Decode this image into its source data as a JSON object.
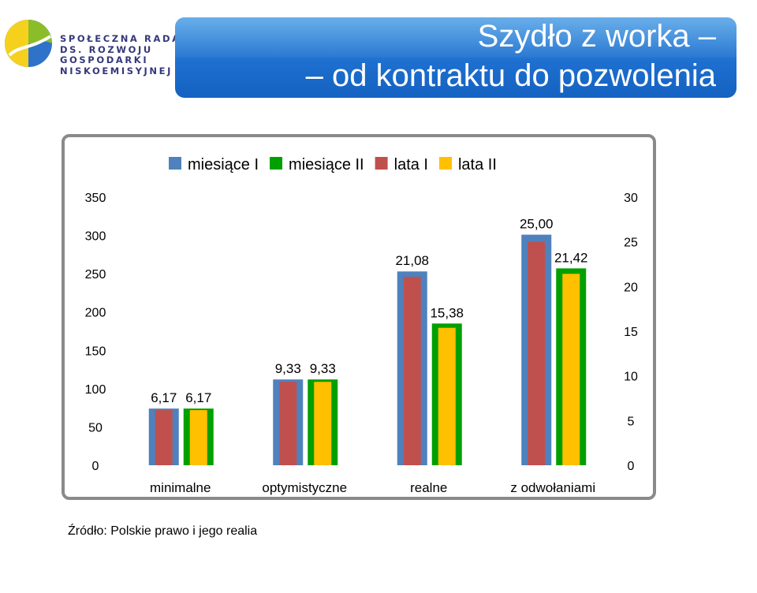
{
  "logo": {
    "lines": [
      "SPOŁECZNA RADA",
      "DS. ROZWOJU",
      "GOSPODARKI",
      "NISKOEMISYJNEJ"
    ],
    "colors": {
      "yellow": "#f5d11e",
      "blue": "#2e73c9",
      "green": "#8bbd2b"
    }
  },
  "title": {
    "line1": "Szydło z worka –",
    "line2": "– od kontraktu do pozwolenia"
  },
  "source": "Źródło: Polskie prawo i jego realia",
  "chart_data": {
    "type": "bar",
    "categories": [
      "minimalne",
      "optymistyczne",
      "realne",
      "z odwołaniami"
    ],
    "series": [
      {
        "name": "miesiące I",
        "axis": "left",
        "color": "#4f81bd",
        "values": [
          74,
          112,
          253,
          301
        ]
      },
      {
        "name": "lata I",
        "axis": "right",
        "color": "#c0504d",
        "values": [
          6.17,
          9.33,
          21.08,
          25.0
        ]
      },
      {
        "name": "miesiące II",
        "axis": "left",
        "color": "#00a000",
        "values": [
          74,
          112,
          185,
          257
        ]
      },
      {
        "name": "lata II",
        "axis": "right",
        "color": "#ffc000",
        "values": [
          6.17,
          9.33,
          15.38,
          21.42
        ]
      }
    ],
    "legend_order": [
      "miesiące I",
      "miesiące II",
      "lata I",
      "lata II"
    ],
    "data_labels": [
      {
        "category": "minimalne",
        "labels": [
          "6,17",
          "6,17"
        ]
      },
      {
        "category": "optymistyczne",
        "labels": [
          "9,33",
          "9,33"
        ]
      },
      {
        "category": "realne",
        "labels": [
          "21,08",
          "15,38"
        ]
      },
      {
        "category": "z odwołaniami",
        "labels": [
          "25,00",
          "21,42"
        ]
      }
    ],
    "left_axis": {
      "ylim": [
        0,
        350
      ],
      "ticks": [
        "0",
        "50",
        "100",
        "150",
        "200",
        "250",
        "300",
        "350"
      ]
    },
    "right_axis": {
      "ylim": [
        0,
        30
      ],
      "ticks": [
        "0",
        "5",
        "10",
        "15",
        "20",
        "25",
        "30"
      ]
    },
    "grid": false,
    "legend_position": "top"
  }
}
